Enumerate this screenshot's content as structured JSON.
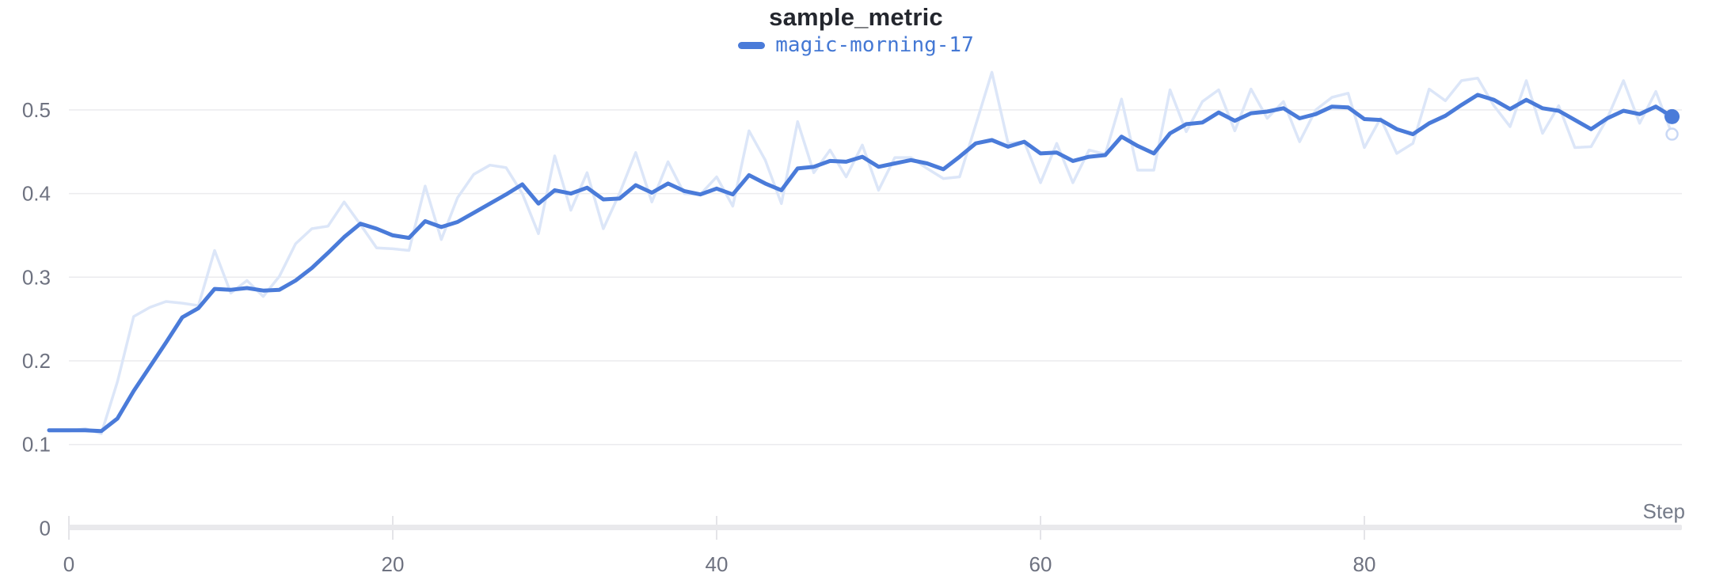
{
  "header": {
    "title": "sample_metric"
  },
  "legend": {
    "items": [
      {
        "label": "magic-morning-17",
        "color": "#4a7bd9"
      }
    ]
  },
  "axes": {
    "x_label": "Step",
    "x_tick_labels": [
      "0",
      "20",
      "40",
      "60",
      "80"
    ],
    "y_tick_labels": [
      "0",
      "0.1",
      "0.2",
      "0.3",
      "0.4",
      "0.5"
    ]
  },
  "colors": {
    "smoothed_line": "#4a7bd9",
    "raw_line": "#dce6f8",
    "raw_ring_stroke": "#c9d8f5",
    "gridline": "#ebebee",
    "axis_bar": "#e9e9ec",
    "tick_mark": "#e4e4e8",
    "tick_text": "#6e7280",
    "title_text": "#24272e",
    "legend_text": "#4478d4"
  },
  "chart_data": {
    "type": "line",
    "title": "sample_metric",
    "xlabel": "Step",
    "ylabel": "",
    "x_ticks": [
      0,
      20,
      40,
      60,
      80
    ],
    "y_ticks": [
      0,
      0.1,
      0.2,
      0.3,
      0.4,
      0.5
    ],
    "xlim": [
      -1.2,
      100
    ],
    "ylim": [
      0,
      0.546
    ],
    "grid": "horizontal",
    "legend_position": "top-center",
    "x": [
      0,
      1,
      2,
      3,
      4,
      5,
      6,
      7,
      8,
      9,
      10,
      11,
      12,
      13,
      14,
      15,
      16,
      17,
      18,
      19,
      20,
      21,
      22,
      23,
      24,
      25,
      26,
      27,
      28,
      29,
      30,
      31,
      32,
      33,
      34,
      35,
      36,
      37,
      38,
      39,
      40,
      41,
      42,
      43,
      44,
      45,
      46,
      47,
      48,
      49,
      50,
      51,
      52,
      53,
      54,
      55,
      56,
      57,
      58,
      59,
      60,
      61,
      62,
      63,
      64,
      65,
      66,
      67,
      68,
      69,
      70,
      71,
      72,
      73,
      74,
      75,
      76,
      77,
      78,
      79,
      80,
      81,
      82,
      83,
      84,
      85,
      86,
      87,
      88,
      89,
      90,
      91,
      92,
      93,
      94,
      95,
      96,
      97,
      98,
      99
    ],
    "series": [
      {
        "name": "magic-morning-17 (raw)",
        "role": "raw",
        "color": "#dce6f8",
        "end_marker": "ring",
        "values": [
          0.116,
          0.119,
          0.113,
          0.175,
          0.253,
          0.264,
          0.271,
          0.269,
          0.266,
          0.332,
          0.281,
          0.296,
          0.277,
          0.301,
          0.34,
          0.358,
          0.361,
          0.39,
          0.363,
          0.335,
          0.334,
          0.332,
          0.409,
          0.345,
          0.395,
          0.423,
          0.434,
          0.431,
          0.4,
          0.352,
          0.445,
          0.38,
          0.425,
          0.358,
          0.4,
          0.449,
          0.39,
          0.438,
          0.4,
          0.399,
          0.42,
          0.385,
          0.475,
          0.44,
          0.388,
          0.486,
          0.425,
          0.452,
          0.42,
          0.458,
          0.404,
          0.443,
          0.443,
          0.43,
          0.418,
          0.42,
          0.482,
          0.545,
          0.46,
          0.462,
          0.413,
          0.46,
          0.413,
          0.452,
          0.447,
          0.513,
          0.428,
          0.428,
          0.524,
          0.474,
          0.51,
          0.524,
          0.475,
          0.525,
          0.49,
          0.51,
          0.462,
          0.5,
          0.515,
          0.52,
          0.455,
          0.49,
          0.448,
          0.46,
          0.525,
          0.511,
          0.535,
          0.538,
          0.505,
          0.48,
          0.535,
          0.472,
          0.505,
          0.455,
          0.456,
          0.49,
          0.535,
          0.484,
          0.522,
          0.471
        ]
      },
      {
        "name": "magic-morning-17",
        "role": "smoothed",
        "color": "#4a7bd9",
        "end_marker": "dot",
        "values": [
          0.117,
          0.117,
          0.116,
          0.131,
          0.164,
          0.193,
          0.222,
          0.252,
          0.263,
          0.286,
          0.285,
          0.287,
          0.284,
          0.285,
          0.296,
          0.311,
          0.329,
          0.348,
          0.364,
          0.358,
          0.35,
          0.347,
          0.367,
          0.36,
          0.366,
          0.377,
          0.388,
          0.399,
          0.411,
          0.388,
          0.404,
          0.4,
          0.407,
          0.393,
          0.394,
          0.41,
          0.401,
          0.412,
          0.403,
          0.399,
          0.406,
          0.399,
          0.422,
          0.412,
          0.404,
          0.43,
          0.432,
          0.439,
          0.438,
          0.444,
          0.432,
          0.436,
          0.44,
          0.436,
          0.429,
          0.444,
          0.46,
          0.464,
          0.456,
          0.462,
          0.448,
          0.449,
          0.439,
          0.444,
          0.446,
          0.468,
          0.457,
          0.448,
          0.472,
          0.483,
          0.485,
          0.497,
          0.487,
          0.496,
          0.498,
          0.502,
          0.49,
          0.495,
          0.504,
          0.503,
          0.489,
          0.488,
          0.477,
          0.471,
          0.484,
          0.493,
          0.506,
          0.518,
          0.512,
          0.501,
          0.512,
          0.502,
          0.499,
          0.488,
          0.477,
          0.49,
          0.499,
          0.495,
          0.504,
          0.492
        ]
      }
    ]
  }
}
